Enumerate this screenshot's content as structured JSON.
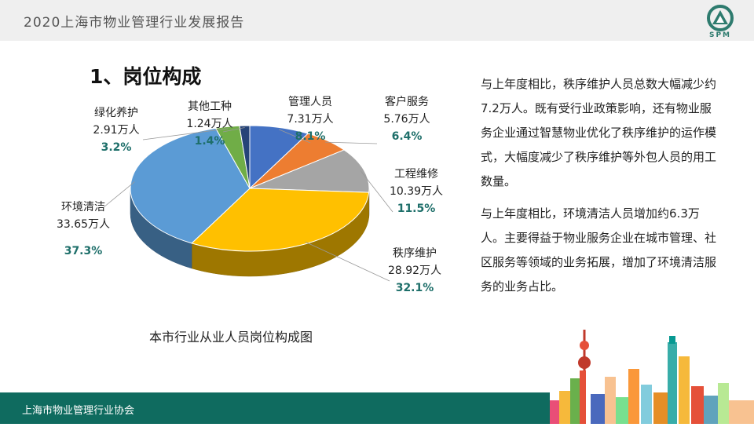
{
  "header": {
    "title": "2020上海市物业管理行业发展报告",
    "logo_text": "SPM"
  },
  "section_title": "1、岗位构成",
  "chart_caption": "本市行业从业人员岗位构成图",
  "paragraphs": [
    "与上年度相比，秩序维护人员总数大幅减少约7.2万人。既有受行业政策影响，还有物业服务企业通过智慧物业优化了秩序维护的运作模式，大幅度减少了秩序维护等外包人员的用工数量。",
    "与上年度相比，环境清洁人员增加约6.3万人。主要得益于物业服务企业在城市管理、社区服务等领域的业务拓展，增加了环境清洁服务的业务占比。"
  ],
  "footer": {
    "text": "上海市物业管理行业协会"
  },
  "colors": {
    "accent_green": "#0f6b5f",
    "percent_text": "#1e6f6a"
  },
  "chart_data": {
    "type": "pie",
    "title": "本市行业从业人员岗位构成图",
    "slices": [
      {
        "name": "管理人员",
        "value": 7.31,
        "value_label": "7.31万人",
        "percent": "8.1%",
        "color": "#4472c4"
      },
      {
        "name": "客户服务",
        "value": 5.76,
        "value_label": "5.76万人",
        "percent": "6.4%",
        "color": "#ed7d31"
      },
      {
        "name": "工程维修",
        "value": 10.39,
        "value_label": "10.39万人",
        "percent": "11.5%",
        "color": "#a5a5a5"
      },
      {
        "name": "秩序维护",
        "value": 28.92,
        "value_label": "28.92万人",
        "percent": "32.1%",
        "color": "#ffc000"
      },
      {
        "name": "环境清洁",
        "value": 33.65,
        "value_label": "33.65万人",
        "percent": "37.3%",
        "color": "#5b9bd5"
      },
      {
        "name": "绿化养护",
        "value": 2.91,
        "value_label": "2.91万人",
        "percent": "3.2%",
        "color": "#70ad47"
      },
      {
        "name": "其他工种",
        "value": 1.24,
        "value_label": "1.24万人",
        "percent": "1.4%",
        "color": "#264478"
      }
    ]
  }
}
